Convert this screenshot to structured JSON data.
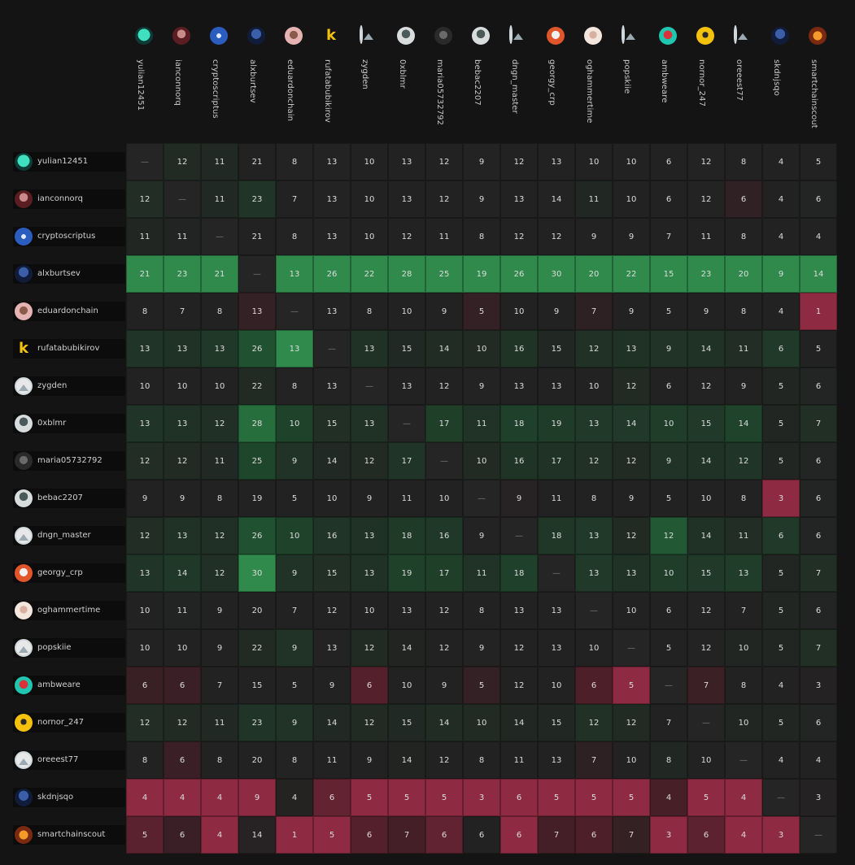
{
  "chart_data": {
    "type": "heatmap",
    "users": [
      "yulian12451",
      "ianconnorq",
      "cryptoscriptus",
      "alxburtsev",
      "eduardonchain",
      "rufatabubikirov",
      "zygden",
      "0xblmr",
      "maria05732792",
      "bebac2207",
      "dngn_master",
      "georgy_crp",
      "oghammertime",
      "popskiie",
      "ambweare",
      "nornor_247",
      "oreeest77",
      "skdnjsqo",
      "smartchainscout"
    ],
    "avatar_icons": [
      "teal-avatar-icon",
      "red-avatar-icon",
      "blue-badge-avatar-icon",
      "blue-avatar-icon",
      "pink-avatar-icon",
      "yellow-k-logo-icon",
      "placeholder-image-icon",
      "gray-avatar-icon",
      "dark-avatar-icon",
      "gray-avatar-icon",
      "placeholder-image-icon",
      "orange-avatar-icon",
      "beige-avatar-icon",
      "placeholder-image-icon",
      "teal-red-avatar-icon",
      "yellow-avatar-icon",
      "placeholder-image-icon",
      "blue-avatar-icon",
      "orange-gear-avatar-icon"
    ],
    "diagonal_label": "—",
    "values": [
      [
        null,
        12,
        11,
        21,
        8,
        13,
        10,
        13,
        12,
        9,
        12,
        13,
        10,
        10,
        6,
        12,
        8,
        4,
        5
      ],
      [
        12,
        null,
        11,
        23,
        7,
        13,
        10,
        13,
        12,
        9,
        13,
        14,
        11,
        10,
        6,
        12,
        6,
        4,
        6
      ],
      [
        11,
        11,
        null,
        21,
        8,
        13,
        10,
        12,
        11,
        8,
        12,
        12,
        9,
        9,
        7,
        11,
        8,
        4,
        4
      ],
      [
        21,
        23,
        21,
        null,
        13,
        26,
        22,
        28,
        25,
        19,
        26,
        30,
        20,
        22,
        15,
        23,
        20,
        9,
        14
      ],
      [
        8,
        7,
        8,
        13,
        null,
        13,
        8,
        10,
        9,
        5,
        10,
        9,
        7,
        9,
        5,
        9,
        8,
        4,
        1
      ],
      [
        13,
        13,
        13,
        26,
        13,
        null,
        13,
        15,
        14,
        10,
        16,
        15,
        12,
        13,
        9,
        14,
        11,
        6,
        5
      ],
      [
        10,
        10,
        10,
        22,
        8,
        13,
        null,
        13,
        12,
        9,
        13,
        13,
        10,
        12,
        6,
        12,
        9,
        5,
        6
      ],
      [
        13,
        13,
        12,
        28,
        10,
        15,
        13,
        null,
        17,
        11,
        18,
        19,
        13,
        14,
        10,
        15,
        14,
        5,
        7
      ],
      [
        12,
        12,
        11,
        25,
        9,
        14,
        12,
        17,
        null,
        10,
        16,
        17,
        12,
        12,
        9,
        14,
        12,
        5,
        6
      ],
      [
        9,
        9,
        8,
        19,
        5,
        10,
        9,
        11,
        10,
        null,
        9,
        11,
        8,
        9,
        5,
        10,
        8,
        3,
        6
      ],
      [
        12,
        13,
        12,
        26,
        10,
        16,
        13,
        18,
        16,
        9,
        null,
        18,
        13,
        12,
        12,
        14,
        11,
        6,
        6
      ],
      [
        13,
        14,
        12,
        30,
        9,
        15,
        13,
        19,
        17,
        11,
        18,
        null,
        13,
        13,
        10,
        15,
        13,
        5,
        7
      ],
      [
        10,
        11,
        9,
        20,
        7,
        12,
        10,
        13,
        12,
        8,
        13,
        13,
        null,
        10,
        6,
        12,
        7,
        5,
        6
      ],
      [
        10,
        10,
        9,
        22,
        9,
        13,
        12,
        14,
        12,
        9,
        12,
        13,
        10,
        null,
        5,
        12,
        10,
        5,
        7
      ],
      [
        6,
        6,
        7,
        15,
        5,
        9,
        6,
        10,
        9,
        5,
        12,
        10,
        6,
        5,
        null,
        7,
        8,
        4,
        3
      ],
      [
        12,
        12,
        11,
        23,
        9,
        14,
        12,
        15,
        14,
        10,
        14,
        15,
        12,
        12,
        7,
        null,
        10,
        5,
        6
      ],
      [
        8,
        6,
        8,
        20,
        8,
        11,
        9,
        14,
        12,
        8,
        11,
        13,
        7,
        10,
        8,
        10,
        null,
        4,
        4
      ],
      [
        4,
        4,
        4,
        9,
        4,
        6,
        5,
        5,
        5,
        3,
        6,
        5,
        5,
        5,
        4,
        5,
        4,
        null,
        3
      ],
      [
        5,
        6,
        4,
        14,
        1,
        5,
        6,
        7,
        6,
        6,
        6,
        7,
        6,
        7,
        3,
        6,
        4,
        3,
        null
      ]
    ],
    "colors": {
      "low": "#8e2a42",
      "mid_low": "#4a1f28",
      "neutral": "#222222",
      "mid_high": "#1e4a2c",
      "high": "#2f8a4b",
      "diagonal": "#252525"
    }
  }
}
